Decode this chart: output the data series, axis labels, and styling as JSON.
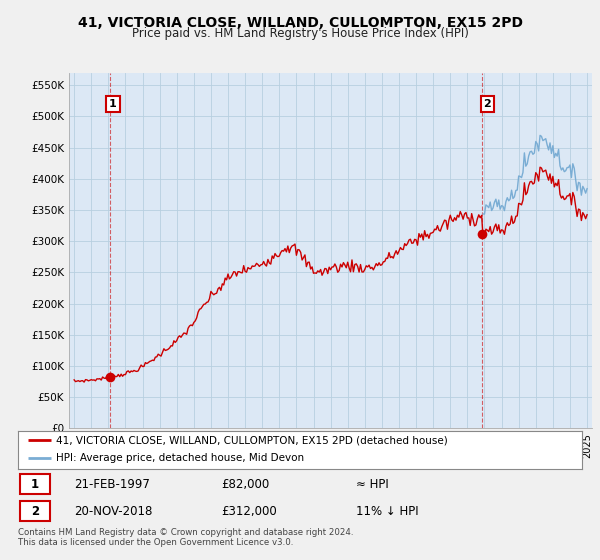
{
  "title": "41, VICTORIA CLOSE, WILLAND, CULLOMPTON, EX15 2PD",
  "subtitle": "Price paid vs. HM Land Registry's House Price Index (HPI)",
  "legend_label1": "41, VICTORIA CLOSE, WILLAND, CULLOMPTON, EX15 2PD (detached house)",
  "legend_label2": "HPI: Average price, detached house, Mid Devon",
  "point1_date": "21-FEB-1997",
  "point1_price": 82000,
  "point1_hpi": "≈ HPI",
  "point2_date": "20-NOV-2018",
  "point2_price": 312000,
  "point2_hpi": "11% ↓ HPI",
  "footer": "Contains HM Land Registry data © Crown copyright and database right 2024.\nThis data is licensed under the Open Government Licence v3.0.",
  "ylim": [
    0,
    570000
  ],
  "yticks": [
    0,
    50000,
    100000,
    150000,
    200000,
    250000,
    300000,
    350000,
    400000,
    450000,
    500000,
    550000
  ],
  "hpi_color": "#7aadd4",
  "price_color": "#cc0000",
  "bg_color": "#f0f0f0",
  "plot_bg": "#dce8f5",
  "grid_color": "#b8cfe0",
  "sale1_year": 1997.12,
  "sale1_price": 82000,
  "sale2_year": 2018.87,
  "sale2_price": 312000,
  "xmin": 1994.7,
  "xmax": 2025.3
}
